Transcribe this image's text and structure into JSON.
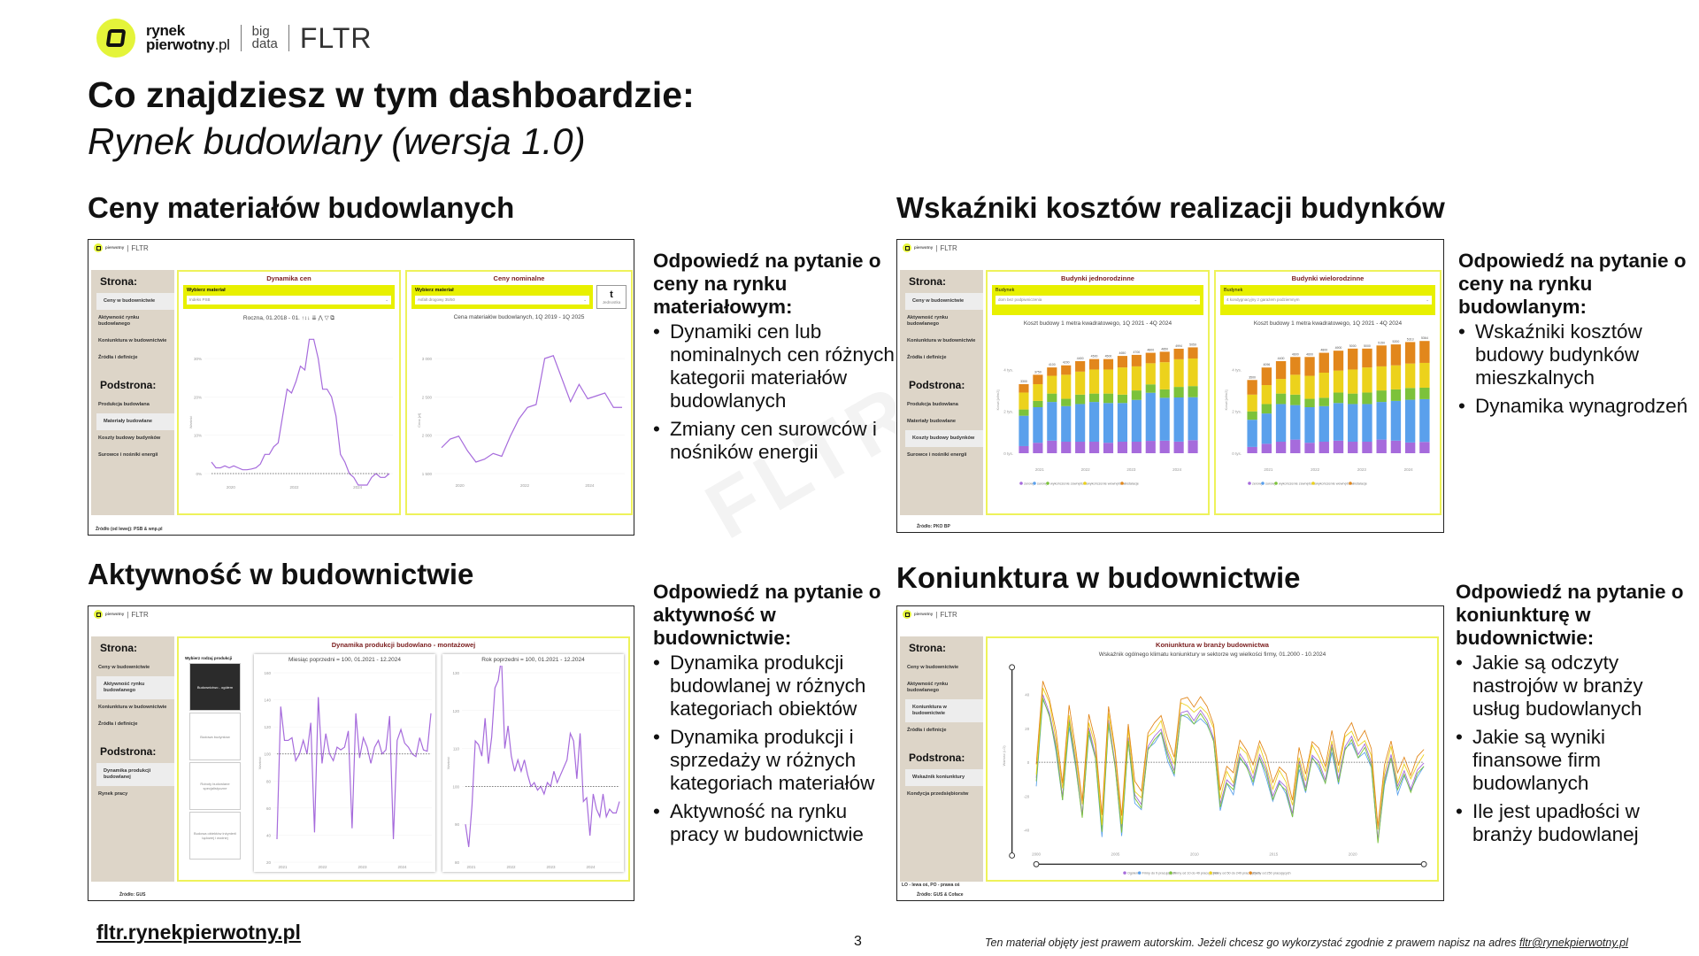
{
  "brand": {
    "word1": "rynek",
    "word2": "pierwotny",
    "word3": ".pl",
    "big": "big",
    "data": "data",
    "fltr": "FLTR"
  },
  "header": {
    "title": "Co znajdziesz w tym dashboardzie:",
    "subtitle": "Rynek budowlany (wersja 1.0)"
  },
  "watermark": "FLTR",
  "sidebar_common": {
    "strona": "Strona:",
    "podstrona": "Podstrona:",
    "pages": [
      "Ceny w budownictwie",
      "Aktywność rynku budowlanego",
      "Koniunktura w budownictwie",
      "Źródła i definicje"
    ]
  },
  "sections": [
    {
      "heading": "Ceny materiałów budowlanych",
      "q": "Odpowiedź na pytanie o ceny na rynku materiałowym:",
      "bullets": [
        "Dynamiki cen lub nominalnych cen różnych kategorii materiałów budowlanych",
        "Zmiany cen surowców i nośników energii"
      ],
      "thumb": {
        "sub": [
          "Produkcja budowlana",
          "Materiały budowlane",
          "Koszty budowy budynków",
          "Surowce i nośniki energii"
        ],
        "source": "Źródło (od lewej): PSB & wnp.pl",
        "p1": {
          "title": "Dynamika cen",
          "pick_label": "Wybierz materiał",
          "pick_value": "Indeks PSB",
          "subtitle": "Roczna, 01.2018 - 01. ↑↕↓  ⇊  ⋀  ▽  ⧉",
          "ylabel": "Wartość",
          "yticks": [
            "0%",
            "10%",
            "20%",
            "30%"
          ],
          "xticks": [
            "2020",
            "2022",
            "2024"
          ]
        },
        "p2": {
          "title": "Ceny nominalne",
          "pick_label": "Wybierz materiał",
          "pick_value": "Asfalt drogowy 35/50",
          "unit": "t",
          "unit_label": "Jednostka",
          "subtitle": "Cena materiałów budowlanych, 1Q 2019 - 1Q 2025",
          "ylabel": "Cena [zł]",
          "yticks": [
            "1 500",
            "2 000",
            "2 500",
            "3 000"
          ],
          "xticks": [
            "2020",
            "2022",
            "2024"
          ]
        }
      }
    },
    {
      "heading": "Wskaźniki kosztów realizacji budynków",
      "q": "Odpowiedź na pytanie o ceny na rynku budowlanym:",
      "bullets": [
        "Wskaźniki kosztów budowy budynków mieszkalnych",
        "Dynamika wynagrodzeń"
      ],
      "thumb": {
        "sub": [
          "Produkcja budowlana",
          "Materiały budowlane",
          "Koszty budowy budynków",
          "Surowce i nośniki energii"
        ],
        "source": "Źródło: PKO BP",
        "p1": {
          "title": "Budynki jednorodzinne",
          "pick_label": "Budynek",
          "pick_value": "dom bez podpiwniczenia",
          "subtitle": "Koszt budowy 1 metra kwadratowego, 1Q 2021 - 4Q 2024"
        },
        "p2": {
          "title": "Budynki wielorodzinne",
          "pick_label": "Budynek",
          "pick_value": "4 kondygnacyjny z garażem podziemnym",
          "subtitle": "Koszt budowy 1 metra kwadratowego, 1Q 2021 - 4Q 2024"
        },
        "ylabel": "Koszt [zł/m2]",
        "yticks": [
          "0 tys.",
          "2 tys.",
          "4 tys."
        ],
        "xticks": [
          "2021",
          "2022",
          "2023",
          "2024"
        ],
        "legend": [
          "zerowy",
          "surowy",
          "wykończenie zewnętrzne",
          "wykończenie wewnętrzne",
          "instalacje"
        ]
      }
    },
    {
      "heading": "Aktywność w budownictwie",
      "q": "Odpowiedź na pytanie o aktywność w budownictwie:",
      "bullets": [
        "Dynamika produkcji budowlanej w różnych kategoriach obiektów",
        "Dynamika produkcji i sprzedaży w różnych kategoriach materiałów",
        "Aktywność na rynku pracy w budownictwie"
      ],
      "thumb": {
        "sub": [
          "Dynamika produkcji budowlanej",
          "Rynek pracy"
        ],
        "source": "Źródło: GUS",
        "title": "Dynamika produkcji budowlano - montażowej",
        "pick_label": "Wybierz rodzaj produkcji",
        "options": [
          "Budownictwo - ogółem",
          "Budowa budynków",
          "Roboty budowlane specjalistyczne",
          "Budowa obiektów inżynierii lądowej i wodnej"
        ],
        "c1": {
          "subtitle": "Miesiąc poprzedni = 100, 01.2021 - 12.2024",
          "yticks": [
            "20",
            "40",
            "60",
            "80",
            "100",
            "120",
            "140",
            "160"
          ]
        },
        "c2": {
          "subtitle": "Rok poprzedni = 100, 01.2021 - 12.2024",
          "yticks": [
            "80",
            "90",
            "100",
            "110",
            "120",
            "130"
          ]
        },
        "ylabel": "Wartość",
        "xticks": [
          "2021",
          "2022",
          "2023",
          "2024"
        ]
      }
    },
    {
      "heading": "Koniunktura w budownictwie",
      "q": "Odpowiedź na pytanie o koniunkturę w budownictwie:",
      "bullets": [
        "Jakie są odczyty nastrojów w branży usług budowlanych",
        "Jakie są wyniki finansowe firm budowlanych",
        "Ile jest upadłości w branży budowlanej"
      ],
      "thumb": {
        "sub": [
          "Wskaźnik koniunktury",
          "Kondycja przedsiębiorstw"
        ],
        "note": "LO - lewa oś, PO - prawa oś",
        "source": "Źródło: GUS & Coface",
        "title": "Koniunktura w branży budownictwa",
        "subtitle": "Wskaźnik ogólnego klimatu koniunktury w sektorze wg wielkości firmy, 01.2000 - 10.2024",
        "ylabel": "Wartość (LO)",
        "yticks": [
          "-40",
          "-20",
          "0",
          "20",
          "40"
        ],
        "xticks": [
          "2000",
          "2005",
          "2010",
          "2015",
          "2020"
        ],
        "legend": [
          "Ogółem",
          "Firmy do 9 pracujących",
          "Firmy od 10 do 49 pracujących",
          "Firmy od 50 do 249 pracujących",
          "Firmy od 250 pracujących"
        ]
      }
    }
  ],
  "colors": {
    "purple": "#a66bdc",
    "blue": "#5aa0ec",
    "green": "#7cc23a",
    "yellow": "#ecd21c",
    "orange": "#e2871c",
    "accent": "#e4f43a"
  },
  "chart_data": [
    {
      "type": "line",
      "title": "Dynamika cen",
      "ylim": [
        -5,
        35
      ],
      "values": [
        3,
        1.5,
        1.5,
        2,
        1.5,
        2,
        1.5,
        1,
        1,
        1.2,
        1.5,
        2.5,
        5,
        5,
        7,
        8,
        15,
        22,
        21,
        24,
        28,
        27,
        35,
        35,
        30,
        22,
        22,
        20,
        15,
        5,
        3,
        0,
        -1,
        -3,
        -3,
        -3,
        -1,
        0,
        -1,
        -1,
        0
      ]
    },
    {
      "type": "line",
      "title": "Ceny nominalne",
      "ylim": [
        1300,
        3400
      ],
      "values": [
        1700,
        1850,
        1900,
        1650,
        1450,
        1500,
        1600,
        1550,
        1900,
        2200,
        2400,
        2450,
        3250,
        3300,
        2900,
        2500,
        2800,
        2550,
        2600,
        2650,
        2400,
        2400
      ]
    },
    {
      "type": "bar",
      "title": "Budynki jednorodzinne",
      "ylim": [
        0,
        5500
      ],
      "totals": [
        3300,
        3750,
        4100,
        4200,
        4400,
        4500,
        4500,
        4650,
        4700,
        4800,
        4850,
        4994,
        5059
      ],
      "zerowy": [
        340,
        500,
        600,
        550,
        550,
        550,
        500,
        550,
        550,
        590,
        600,
        555,
        623
      ],
      "surowy": [
        1450,
        1700,
        1850,
        1700,
        1800,
        1900,
        1900,
        1850,
        2000,
        2300,
        2050,
        2110,
        2054
      ],
      "zewn": [
        300,
        300,
        400,
        350,
        450,
        400,
        450,
        400,
        450,
        400,
        400,
        504,
        531
      ],
      "instalacje": [
        400,
        450,
        400,
        450,
        500,
        500,
        500,
        550,
        550,
        500,
        500,
        504,
        531
      ]
    },
    {
      "type": "bar",
      "title": "Budynki wielorodzinne",
      "ylim": [
        0,
        5500
      ],
      "totals": [
        3500,
        4096,
        4400,
        4600,
        4600,
        4800,
        4900,
        5000,
        5000,
        5150,
        5200,
        5313,
        5364
      ],
      "zerowy": [
        300,
        450,
        550,
        650,
        500,
        550,
        600,
        550,
        550,
        650,
        600,
        513,
        540
      ],
      "surowy": [
        1300,
        1450,
        1800,
        1650,
        1700,
        1700,
        1800,
        1800,
        1800,
        1800,
        1900,
        2043,
        2044
      ],
      "zewn": [
        400,
        450,
        500,
        500,
        400,
        400,
        500,
        500,
        550,
        550,
        550,
        562,
        548
      ],
      "instalacje": [
        700,
        840,
        850,
        850,
        900,
        950,
        950,
        1000,
        900,
        1000,
        1000,
        1027,
        1047
      ]
    },
    {
      "type": "line",
      "title": "Miesiąc poprzedni = 100",
      "ylim": [
        20,
        160
      ],
      "ref": 100,
      "values": [
        37,
        135,
        110,
        110,
        112,
        95,
        100,
        110,
        100,
        123,
        42,
        142,
        93,
        115,
        100,
        95,
        105,
        103,
        105,
        117,
        45,
        130,
        97,
        112,
        105,
        93,
        105,
        110,
        100,
        103,
        128,
        37,
        110,
        118,
        108,
        105,
        100,
        98,
        112,
        103,
        102,
        130
      ]
    },
    {
      "type": "line",
      "title": "Rok poprzedni = 100",
      "ylim": [
        80,
        130
      ],
      "ref": 100,
      "values": [
        90,
        84,
        95,
        112,
        111,
        108,
        118,
        106,
        113,
        126,
        128,
        134,
        110,
        116,
        108,
        104,
        107,
        104,
        107,
        103,
        100,
        101,
        99,
        100,
        98,
        101,
        100,
        104,
        101,
        103,
        105,
        107,
        114,
        112,
        102,
        114,
        96,
        97,
        87,
        98,
        94,
        92,
        98,
        92,
        94,
        93,
        93,
        96
      ]
    },
    {
      "type": "line",
      "title": "Koniunktura",
      "ylim": [
        -50,
        50
      ],
      "ref": 0,
      "base": [
        -10,
        40,
        30,
        10,
        -20,
        25,
        0,
        -30,
        20,
        5,
        -40,
        25,
        0,
        -40,
        15,
        -20,
        -25,
        10,
        15,
        20,
        5,
        -5,
        30,
        30,
        25,
        30,
        25,
        15,
        -25,
        -10,
        -15,
        5,
        0,
        -10,
        5,
        -5,
        -20,
        -10,
        -15,
        -30,
        0,
        -15,
        5,
        0,
        -10,
        10,
        -10,
        10,
        15,
        5,
        10,
        0,
        -45,
        -10,
        5,
        -15,
        -5,
        -15,
        -5,
        0
      ],
      "offsets": [
        0,
        -3,
        -2,
        4,
        8
      ]
    }
  ],
  "footer": {
    "link": "fltr.rynekpierwotny.pl",
    "page": "3",
    "copyright": "Ten materiał objęty jest prawem autorskim. Jeżeli chcesz go wykorzystać zgodnie z prawem napisz na adres ",
    "email": "fltr@rynekpierwotny.pl"
  }
}
